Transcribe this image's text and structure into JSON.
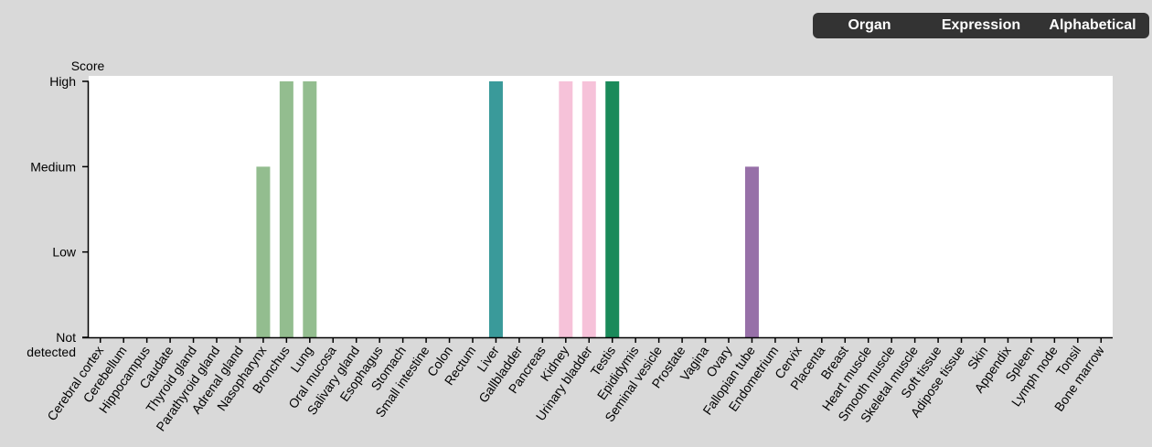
{
  "sort_buttons": [
    {
      "label": "Organ",
      "active": true
    },
    {
      "label": "Expression",
      "active": false
    },
    {
      "label": "Alphabetical",
      "active": false
    }
  ],
  "chart_data": {
    "type": "bar",
    "ylabel": "Score",
    "y_levels": [
      "Not detected",
      "Low",
      "Medium",
      "High"
    ],
    "categories": [
      "Cerebral cortex",
      "Cerebellum",
      "Hippocampus",
      "Caudate",
      "Thyroid gland",
      "Parathyroid gland",
      "Adrenal gland",
      "Nasopharynx",
      "Bronchus",
      "Lung",
      "Oral mucosa",
      "Salivary gland",
      "Esophagus",
      "Stomach",
      "Small intestine",
      "Colon",
      "Rectum",
      "Liver",
      "Gallbladder",
      "Pancreas",
      "Kidney",
      "Urinary bladder",
      "Testis",
      "Epididymis",
      "Seminal vesicle",
      "Prostate",
      "Vagina",
      "Ovary",
      "Fallopian tube",
      "Endometrium",
      "Cervix",
      "Placenta",
      "Breast",
      "Heart muscle",
      "Smooth muscle",
      "Skeletal muscle",
      "Soft tissue",
      "Adipose tissue",
      "Skin",
      "Appendix",
      "Spleen",
      "Lymph node",
      "Tonsil",
      "Bone marrow"
    ],
    "values": [
      0,
      0,
      0,
      0,
      0,
      0,
      0,
      2,
      3,
      3,
      0,
      0,
      0,
      0,
      0,
      0,
      0,
      3,
      0,
      0,
      3,
      3,
      3,
      0,
      0,
      0,
      0,
      0,
      2,
      0,
      0,
      0,
      0,
      0,
      0,
      0,
      0,
      0,
      0,
      0,
      0,
      0,
      0,
      0
    ],
    "colors": [
      "#93bd8f",
      "#93bd8f",
      "#93bd8f",
      "#93bd8f",
      "#93bd8f",
      "#93bd8f",
      "#93bd8f",
      "#93bd8f",
      "#93bd8f",
      "#93bd8f",
      "#93bd8f",
      "#93bd8f",
      "#93bd8f",
      "#93bd8f",
      "#93bd8f",
      "#93bd8f",
      "#93bd8f",
      "#3a9a9a",
      "#3a9a9a",
      "#3a9a9a",
      "#f6c2d9",
      "#f6c2d9",
      "#1a8a5a",
      "#1a8a5a",
      "#1a8a5a",
      "#1a8a5a",
      "#9770a8",
      "#9770a8",
      "#9770a8",
      "#9770a8",
      "#9770a8",
      "#9770a8",
      "#9770a8",
      "#9770a8",
      "#9770a8",
      "#9770a8",
      "#9770a8",
      "#9770a8",
      "#9770a8",
      "#9770a8",
      "#9770a8",
      "#9770a8",
      "#9770a8",
      "#9770a8"
    ],
    "ylim": [
      0,
      3
    ],
    "grid": false,
    "legend": "none"
  }
}
